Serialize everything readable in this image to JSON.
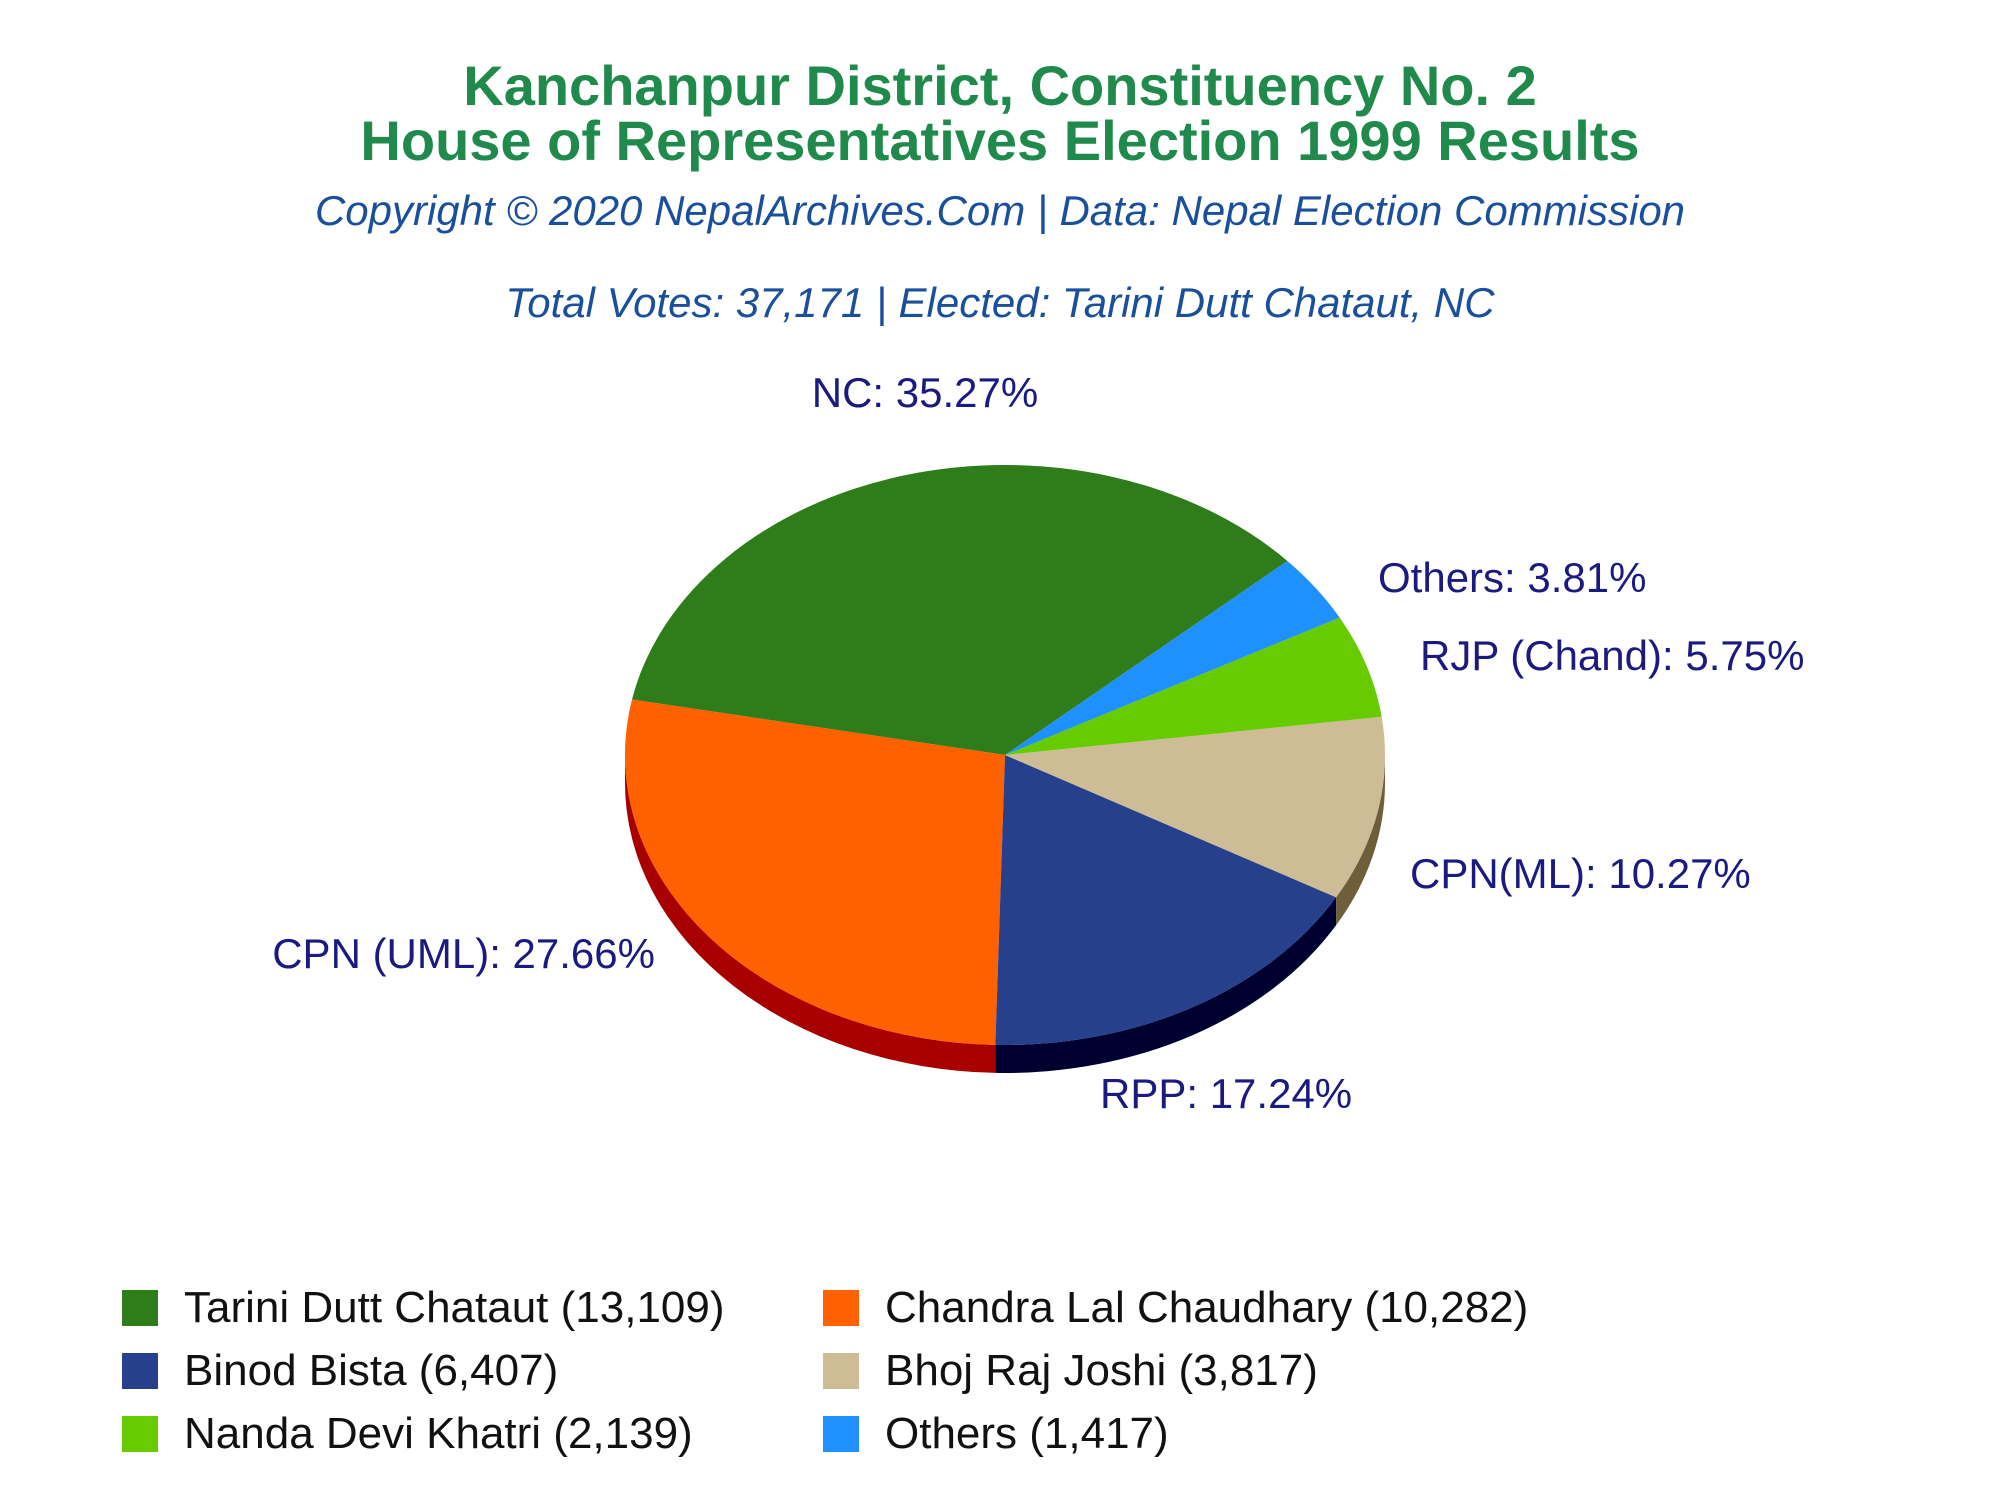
{
  "header": {
    "title_line1": "Kanchanpur District, Constituency No. 2",
    "title_line2": "House of Representatives Election 1999 Results",
    "copyright": "Copyright © 2020 NepalArchives.Com | Data: Nepal Election Commission",
    "summary": "Total Votes: 37,171 | Elected: Tarini Dutt Chataut, NC"
  },
  "chart_data": {
    "type": "pie",
    "title": "Kanchanpur District, Constituency No. 2 House of Representatives Election 1999 Results",
    "slices": [
      {
        "party": "NC",
        "percent": 35.27,
        "label": "NC: 35.27%",
        "candidate": "Tarini Dutt Chataut (13,109)",
        "votes": 13109,
        "color": "#2e7d1a",
        "side_color": "#1d5210"
      },
      {
        "party": "CPN (UML)",
        "percent": 27.66,
        "label": "CPN (UML): 27.66%",
        "candidate": "Chandra Lal Chaudhary (10,282)",
        "votes": 10282,
        "color": "#ff6000",
        "side_color": "#a80000"
      },
      {
        "party": "RPP",
        "percent": 17.24,
        "label": "RPP: 17.24%",
        "candidate": "Binod Bista (6,407)",
        "votes": 6407,
        "color": "#27408b",
        "side_color": "#000030"
      },
      {
        "party": "CPN(ML)",
        "percent": 10.27,
        "label": "CPN(ML): 10.27%",
        "candidate": "Bhoj Raj Joshi (3,817)",
        "votes": 3817,
        "color": "#cdbc96",
        "side_color": "#6e5f3a"
      },
      {
        "party": "RJP (Chand)",
        "percent": 5.75,
        "label": "RJP (Chand): 5.75%",
        "candidate": "Nanda Devi Khatri (2,139)",
        "votes": 2139,
        "color": "#66cc00",
        "side_color": "#3d7a00"
      },
      {
        "party": "Others",
        "percent": 3.81,
        "label": "Others: 3.81%",
        "candidate": "Others (1,417)",
        "votes": 1417,
        "color": "#1e90ff",
        "side_color": "#0f4f99"
      }
    ],
    "label_color": "#1a1a80",
    "legend_position": "bottom",
    "style": "3d-pie"
  }
}
